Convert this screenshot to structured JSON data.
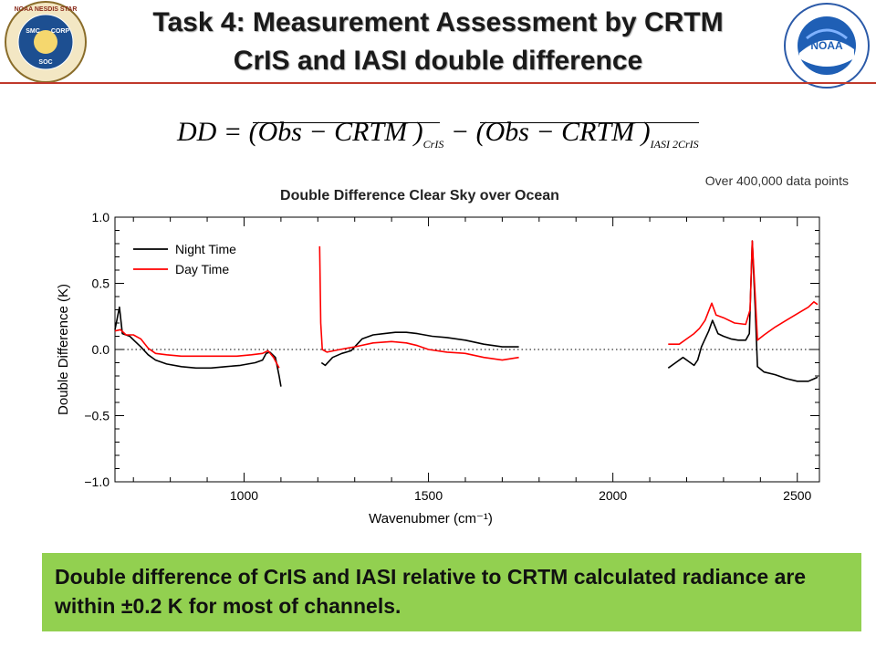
{
  "header": {
    "title_line1": "Task 4: Measurement Assessment by CRTM",
    "title_line2": "CrIS and IASI double difference",
    "logo_left_text": "NOAA NESDIS STAR",
    "logo_left_inner": [
      "SMC",
      "CORP",
      "SOC"
    ],
    "logo_right_text": "NOAA"
  },
  "equation": {
    "lhs": "DD",
    "term1": "(Obs − CRTM )",
    "term1_sub": "CrIS",
    "term2": "(Obs − CRTM )",
    "term2_sub": "IASI 2CrIS",
    "eq_sign": " = ",
    "minus": " − "
  },
  "note": "Over 400,000 data points",
  "conclusion": "Double difference of CrIS and IASI relative to CRTM calculated radiance are within ±0.2 K for most of channels.",
  "colors": {
    "night": "#000000",
    "day": "#ff0000",
    "banner": "#92d050",
    "rule": "#c0392b"
  },
  "chart_data": {
    "type": "line",
    "title": "Double Difference Clear Sky over Ocean",
    "xlabel": "Wavenubmer (cm⁻¹)",
    "ylabel": "Double Difference (K)",
    "xlim": [
      650,
      2560
    ],
    "ylim": [
      -1.0,
      1.0
    ],
    "x_ticks": [
      1000,
      1500,
      2000,
      2500
    ],
    "y_ticks": [
      1.0,
      0.5,
      0.0,
      -0.5,
      -1.0
    ],
    "y_tick_labels": [
      "1.0",
      "0.5",
      "0.0",
      "−0.5",
      "−1.0"
    ],
    "zero_line": "dotted",
    "legend": {
      "placement": "top-left",
      "entries": [
        "Night Time",
        "Day Time"
      ]
    },
    "series": [
      {
        "name": "Night Time",
        "color": "#000000",
        "segments": [
          [
            [
              650,
              0.15
            ],
            [
              662,
              0.32
            ],
            [
              670,
              0.12
            ],
            [
              690,
              0.1
            ],
            [
              705,
              0.06
            ],
            [
              720,
              0.02
            ],
            [
              740,
              -0.04
            ],
            [
              760,
              -0.08
            ],
            [
              790,
              -0.11
            ],
            [
              830,
              -0.13
            ],
            [
              870,
              -0.14
            ],
            [
              910,
              -0.14
            ],
            [
              950,
              -0.13
            ],
            [
              990,
              -0.12
            ],
            [
              1030,
              -0.1
            ],
            [
              1050,
              -0.08
            ],
            [
              1060,
              -0.03
            ],
            [
              1070,
              -0.02
            ],
            [
              1085,
              -0.06
            ],
            [
              1095,
              -0.2
            ],
            [
              1100,
              -0.28
            ]
          ],
          [
            [
              1210,
              -0.1
            ],
            [
              1220,
              -0.12
            ],
            [
              1240,
              -0.06
            ],
            [
              1265,
              -0.03
            ],
            [
              1290,
              -0.01
            ],
            [
              1320,
              0.08
            ],
            [
              1350,
              0.11
            ],
            [
              1380,
              0.12
            ],
            [
              1410,
              0.13
            ],
            [
              1440,
              0.13
            ],
            [
              1470,
              0.12
            ],
            [
              1510,
              0.1
            ],
            [
              1550,
              0.09
            ],
            [
              1600,
              0.07
            ],
            [
              1650,
              0.04
            ],
            [
              1700,
              0.02
            ],
            [
              1745,
              0.02
            ]
          ],
          [
            [
              2150,
              -0.14
            ],
            [
              2170,
              -0.1
            ],
            [
              2190,
              -0.06
            ],
            [
              2205,
              -0.09
            ],
            [
              2220,
              -0.12
            ],
            [
              2230,
              -0.08
            ],
            [
              2240,
              0.02
            ],
            [
              2260,
              0.14
            ],
            [
              2270,
              0.22
            ],
            [
              2285,
              0.12
            ],
            [
              2300,
              0.1
            ],
            [
              2320,
              0.08
            ],
            [
              2340,
              0.07
            ],
            [
              2360,
              0.07
            ],
            [
              2370,
              0.12
            ],
            [
              2378,
              0.82
            ],
            [
              2386,
              0.3
            ],
            [
              2392,
              -0.13
            ],
            [
              2410,
              -0.17
            ],
            [
              2440,
              -0.19
            ],
            [
              2470,
              -0.22
            ],
            [
              2500,
              -0.24
            ],
            [
              2530,
              -0.24
            ],
            [
              2555,
              -0.21
            ]
          ]
        ]
      },
      {
        "name": "Day Time",
        "color": "#ff0000",
        "segments": [
          [
            [
              650,
              0.14
            ],
            [
              665,
              0.15
            ],
            [
              680,
              0.11
            ],
            [
              700,
              0.11
            ],
            [
              720,
              0.08
            ],
            [
              740,
              0.01
            ],
            [
              760,
              -0.03
            ],
            [
              790,
              -0.04
            ],
            [
              830,
              -0.05
            ],
            [
              880,
              -0.05
            ],
            [
              930,
              -0.05
            ],
            [
              980,
              -0.05
            ],
            [
              1020,
              -0.04
            ],
            [
              1050,
              -0.03
            ],
            [
              1065,
              -0.01
            ],
            [
              1080,
              -0.06
            ],
            [
              1095,
              -0.14
            ]
          ],
          [
            [
              1205,
              0.78
            ],
            [
              1208,
              0.2
            ],
            [
              1212,
              0.0
            ],
            [
              1225,
              -0.02
            ],
            [
              1260,
              0.0
            ],
            [
              1300,
              0.02
            ],
            [
              1350,
              0.05
            ],
            [
              1400,
              0.06
            ],
            [
              1440,
              0.05
            ],
            [
              1470,
              0.03
            ],
            [
              1500,
              0.0
            ],
            [
              1550,
              -0.02
            ],
            [
              1600,
              -0.03
            ],
            [
              1650,
              -0.06
            ],
            [
              1700,
              -0.08
            ],
            [
              1745,
              -0.06
            ]
          ],
          [
            [
              2150,
              0.04
            ],
            [
              2180,
              0.04
            ],
            [
              2200,
              0.08
            ],
            [
              2220,
              0.12
            ],
            [
              2235,
              0.16
            ],
            [
              2250,
              0.22
            ],
            [
              2268,
              0.35
            ],
            [
              2280,
              0.26
            ],
            [
              2300,
              0.24
            ],
            [
              2330,
              0.2
            ],
            [
              2360,
              0.19
            ],
            [
              2372,
              0.3
            ],
            [
              2378,
              0.82
            ],
            [
              2386,
              0.4
            ],
            [
              2392,
              0.07
            ],
            [
              2410,
              0.11
            ],
            [
              2440,
              0.17
            ],
            [
              2470,
              0.22
            ],
            [
              2500,
              0.27
            ],
            [
              2530,
              0.32
            ],
            [
              2545,
              0.36
            ],
            [
              2555,
              0.34
            ]
          ]
        ]
      }
    ]
  }
}
